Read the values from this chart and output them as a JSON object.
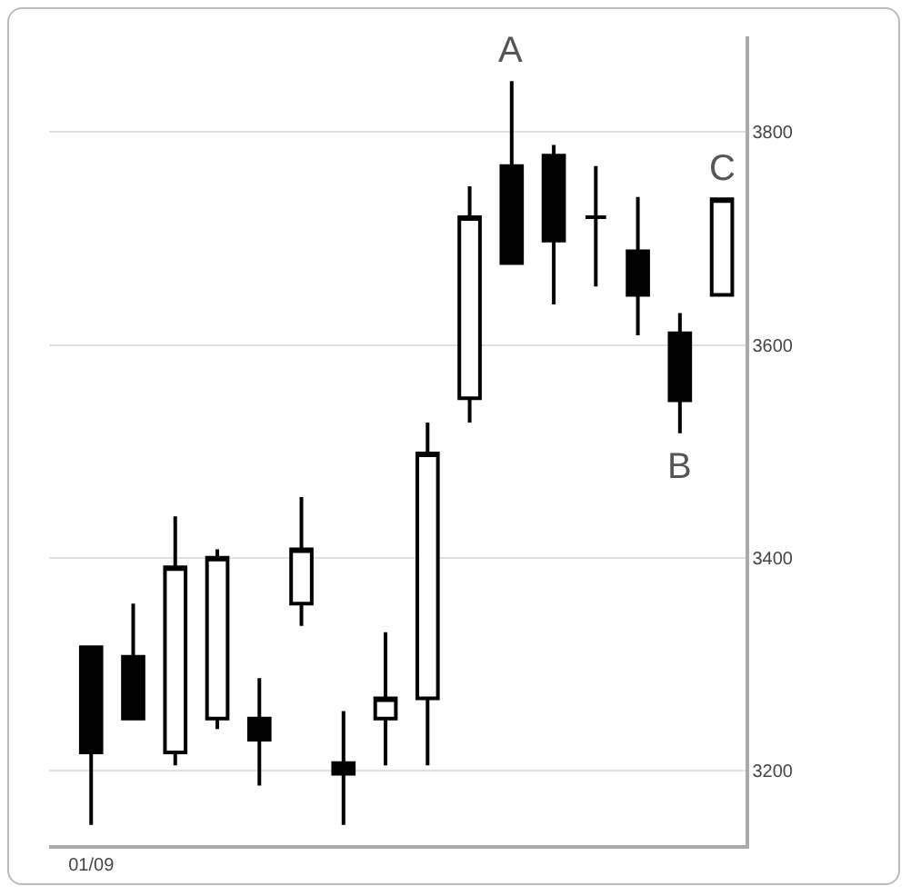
{
  "chart_data": {
    "type": "candlestick",
    "categories": [
      "01/09",
      null,
      null,
      null,
      null,
      null,
      null,
      null,
      null,
      null,
      null,
      null,
      null,
      null,
      null,
      null
    ],
    "ohlc": [
      [
        3316,
        3316,
        3149,
        3217
      ],
      [
        3307,
        3357,
        3249,
        3249
      ],
      [
        3217,
        3439,
        3205,
        3391
      ],
      [
        3249,
        3408,
        3239,
        3400
      ],
      [
        3249,
        3287,
        3186,
        3229
      ],
      [
        3357,
        3457,
        3336,
        3408
      ],
      [
        3207,
        3256,
        3149,
        3197
      ],
      [
        3249,
        3330,
        3205,
        3268
      ],
      [
        3268,
        3527,
        3205,
        3498
      ],
      [
        3550,
        3749,
        3527,
        3720
      ],
      [
        3768,
        3848,
        3677,
        3677
      ],
      [
        3778,
        3788,
        3638,
        3698
      ],
      [
        3720,
        3768,
        3655,
        3720
      ],
      [
        3688,
        3739,
        3609,
        3647
      ],
      [
        3611,
        3630,
        3517,
        3548
      ],
      [
        3647,
        3737,
        3647,
        3737
      ]
    ],
    "color": "#000000",
    "ylim": [
      3130,
      3890
    ],
    "yticks": [
      3200,
      3400,
      3600,
      3800
    ],
    "grid": "y",
    "annotations": [
      {
        "text": "A",
        "y": 3848
      },
      {
        "text": "B",
        "y": 3517
      },
      {
        "text": "C",
        "y": 3737
      }
    ]
  }
}
